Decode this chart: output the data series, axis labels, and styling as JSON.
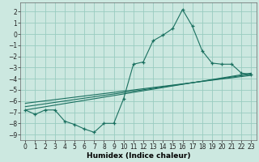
{
  "xlabel": "Humidex (Indice chaleur)",
  "background_color": "#cce8e0",
  "grid_color": "#99ccc0",
  "line_color": "#1a7060",
  "xlim": [
    -0.5,
    23.5
  ],
  "ylim": [
    -9.5,
    2.8
  ],
  "yticks": [
    2,
    1,
    0,
    -1,
    -2,
    -3,
    -4,
    -5,
    -6,
    -7,
    -8,
    -9
  ],
  "xticks": [
    0,
    1,
    2,
    3,
    4,
    5,
    6,
    7,
    8,
    9,
    10,
    11,
    12,
    13,
    14,
    15,
    16,
    17,
    18,
    19,
    20,
    21,
    22,
    23
  ],
  "series1_x": [
    0,
    1,
    2,
    3,
    4,
    5,
    6,
    7,
    8,
    9,
    10,
    11,
    12,
    13,
    14,
    15,
    16,
    17,
    18,
    19,
    20,
    21,
    22,
    23
  ],
  "series1_y": [
    -6.8,
    -7.2,
    -6.8,
    -6.8,
    -7.8,
    -8.1,
    -8.5,
    -8.8,
    -8.0,
    -8.0,
    -5.8,
    -2.7,
    -2.5,
    -0.6,
    -0.1,
    0.5,
    2.2,
    0.7,
    -1.5,
    -2.6,
    -2.7,
    -2.7,
    -3.5,
    -3.6
  ],
  "series2_x": [
    0,
    23
  ],
  "series2_y": [
    -6.8,
    -3.5
  ],
  "series3_x": [
    0,
    23
  ],
  "series3_y": [
    -6.5,
    -3.6
  ],
  "series4_x": [
    0,
    23
  ],
  "series4_y": [
    -6.2,
    -3.7
  ],
  "tick_fontsize": 5.5,
  "xlabel_fontsize": 6.5
}
